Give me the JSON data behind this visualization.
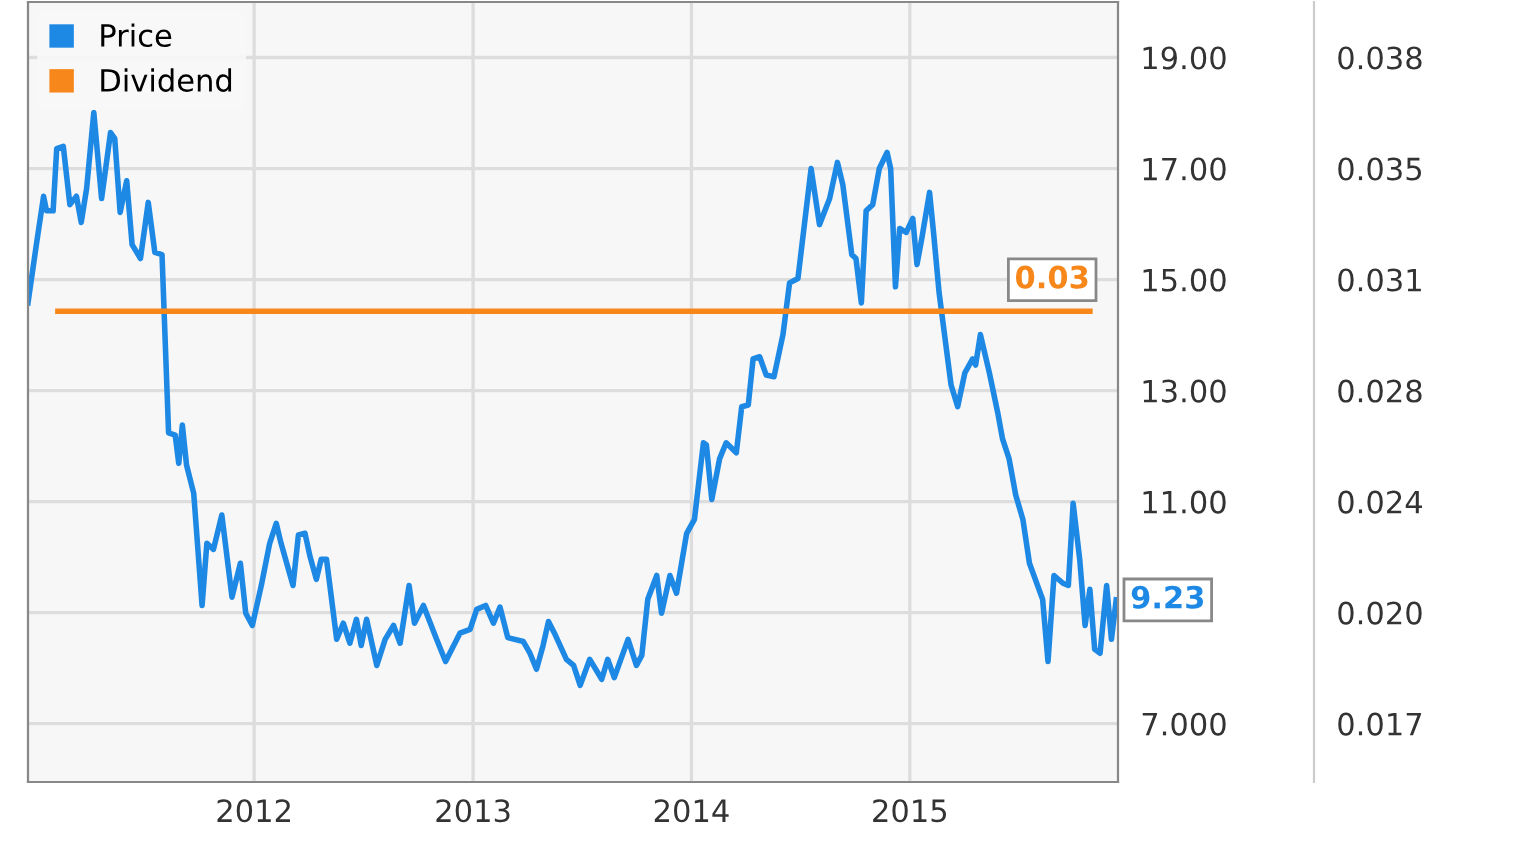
{
  "chart_data": {
    "type": "line",
    "x": [
      "2010-12-19",
      "2011-01-02",
      "2011-01-14",
      "2011-01-19",
      "2011-01-30",
      "2011-02-05",
      "2011-02-16",
      "2011-02-27",
      "2011-03-10",
      "2011-03-18",
      "2011-03-27",
      "2011-04-08",
      "2011-04-21",
      "2011-05-06",
      "2011-05-13",
      "2011-05-22",
      "2011-06-02",
      "2011-06-11",
      "2011-06-25",
      "2011-07-08",
      "2011-07-19",
      "2011-07-31",
      "2011-08-11",
      "2011-08-22",
      "2011-08-28",
      "2011-09-03",
      "2011-09-10",
      "2011-09-22",
      "2011-10-06",
      "2011-10-14",
      "2011-10-25",
      "2011-11-08",
      "2011-11-25",
      "2011-12-09",
      "2011-12-18",
      "2011-12-29",
      "2012-01-13",
      "2012-01-27",
      "2012-02-07",
      "2012-02-15",
      "2012-03-06",
      "2012-03-15",
      "2012-03-26",
      "2012-04-03",
      "2012-04-14",
      "2012-04-22",
      "2012-05-01",
      "2012-05-18",
      "2012-05-29",
      "2012-06-09",
      "2012-06-20",
      "2012-06-28",
      "2012-07-07",
      "2012-07-24",
      "2012-08-07",
      "2012-08-21",
      "2012-09-01",
      "2012-09-16",
      "2012-09-25",
      "2012-10-10",
      "2012-11-01",
      "2012-11-16",
      "2012-12-10",
      "2012-12-27",
      "2013-01-07",
      "2013-01-22",
      "2013-02-04",
      "2013-02-15",
      "2013-02-28",
      "2013-03-26",
      "2013-04-06",
      "2013-04-17",
      "2013-04-28",
      "2013-05-07",
      "2013-05-17",
      "2013-06-06",
      "2013-06-18",
      "2013-06-29",
      "2013-07-15",
      "2013-08-04",
      "2013-08-14",
      "2013-08-25",
      "2013-09-17",
      "2013-10-01",
      "2013-10-10",
      "2013-10-20",
      "2013-11-04",
      "2013-11-12",
      "2013-11-26",
      "2013-12-07",
      "2013-12-24",
      "2014-01-06",
      "2014-01-21",
      "2014-01-26",
      "2014-02-04",
      "2014-02-17",
      "2014-02-28",
      "2014-03-17",
      "2014-03-26",
      "2014-04-06",
      "2014-04-14",
      "2014-04-25",
      "2014-05-06",
      "2014-05-19",
      "2014-06-03",
      "2014-06-14",
      "2014-06-28",
      "2014-07-20",
      "2014-08-03",
      "2014-08-20",
      "2014-09-02",
      "2014-09-11",
      "2014-09-26",
      "2014-10-03",
      "2014-10-12",
      "2014-10-20",
      "2014-10-31",
      "2014-11-11",
      "2014-11-24",
      "2014-11-30",
      "2014-12-08",
      "2014-12-15",
      "2014-12-26",
      "2015-01-06",
      "2015-01-13",
      "2015-01-21",
      "2015-02-03",
      "2015-02-10",
      "2015-02-19",
      "2015-03-11",
      "2015-03-22",
      "2015-04-03",
      "2015-04-16",
      "2015-04-21",
      "2015-04-29",
      "2015-05-14",
      "2015-05-28",
      "2015-06-05",
      "2015-06-16",
      "2015-06-27",
      "2015-07-09",
      "2015-07-20",
      "2015-08-11",
      "2015-08-20",
      "2015-08-30",
      "2015-09-14",
      "2015-09-23",
      "2015-10-01",
      "2015-10-12",
      "2015-10-21",
      "2015-10-29",
      "2015-11-06",
      "2015-11-15",
      "2015-11-26",
      "2015-12-04",
      "2015-12-12"
    ],
    "series": [
      {
        "name": "Price",
        "color": "#1e88e5",
        "values": [
          14.58,
          15.63,
          16.5,
          16.24,
          16.24,
          17.36,
          17.4,
          16.35,
          16.5,
          16.03,
          16.64,
          18.01,
          16.46,
          17.65,
          17.54,
          16.21,
          16.78,
          15.63,
          15.38,
          16.39,
          15.49,
          15.45,
          12.24,
          12.2,
          11.69,
          12.38,
          11.66,
          11.15,
          9.13,
          10.25,
          10.14,
          10.76,
          9.28,
          9.89,
          8.99,
          8.77,
          9.49,
          10.25,
          10.61,
          10.25,
          9.49,
          10.4,
          10.43,
          10.03,
          9.6,
          9.96,
          9.96,
          8.52,
          8.81,
          8.45,
          8.88,
          8.41,
          8.88,
          8.05,
          8.52,
          8.77,
          8.45,
          9.49,
          8.81,
          9.13,
          8.52,
          8.12,
          8.63,
          8.7,
          9.06,
          9.13,
          8.81,
          9.1,
          8.55,
          8.48,
          8.27,
          7.98,
          8.41,
          8.84,
          8.63,
          8.16,
          8.05,
          7.69,
          8.16,
          7.8,
          8.16,
          7.83,
          8.52,
          8.05,
          8.23,
          9.24,
          9.67,
          8.99,
          9.67,
          9.35,
          10.43,
          10.68,
          12.06,
          12.02,
          11.04,
          11.77,
          12.06,
          11.88,
          12.71,
          12.74,
          13.57,
          13.61,
          13.28,
          13.25,
          14.01,
          14.94,
          15.02,
          17.0,
          15.99,
          16.46,
          17.11,
          16.71,
          15.45,
          15.38,
          14.58,
          16.24,
          16.35,
          17.0,
          17.29,
          17.0,
          14.87,
          15.92,
          15.85,
          16.1,
          15.27,
          15.74,
          16.57,
          15.81,
          14.76,
          13.1,
          12.71,
          13.32,
          13.57,
          13.46,
          14.01,
          13.32,
          12.6,
          12.13,
          11.77,
          11.12,
          10.68,
          9.89,
          9.24,
          8.12,
          9.67,
          9.53,
          9.49,
          10.97,
          9.96,
          8.77,
          9.42,
          8.34,
          8.27,
          9.49,
          8.52,
          9.23
        ],
        "value_labels": [
          null,
          null,
          null,
          null,
          null,
          null,
          null,
          null,
          null,
          null,
          null,
          null,
          null,
          null,
          null,
          null,
          null,
          null,
          null,
          null,
          null,
          null,
          null,
          null,
          null,
          null,
          null,
          null,
          null,
          null,
          null,
          null,
          null,
          null,
          null,
          null,
          null,
          null,
          null,
          null,
          null,
          null,
          null,
          null,
          null,
          null,
          null,
          null,
          null,
          null,
          null,
          null,
          null,
          null,
          null,
          null,
          null,
          null,
          null,
          null,
          null,
          null,
          null,
          null,
          null,
          null,
          null,
          null,
          null,
          null,
          null,
          null,
          null,
          null,
          null,
          null,
          null,
          null,
          null,
          null,
          null,
          null,
          null,
          null,
          null,
          null,
          null,
          null,
          null,
          null,
          null,
          null,
          null,
          null,
          null,
          null,
          null,
          null,
          null,
          null,
          null,
          null,
          null,
          null,
          null,
          null,
          null,
          null,
          null,
          null,
          null,
          null,
          null,
          null,
          null,
          null,
          null,
          null,
          null,
          null,
          null,
          null,
          null,
          null,
          null,
          null,
          null,
          null,
          null,
          null,
          null,
          null,
          null,
          null,
          null,
          null,
          null,
          null,
          null,
          null,
          null,
          null,
          null,
          null,
          null,
          null,
          null,
          null,
          null,
          null,
          null,
          null,
          null,
          null,
          null,
          "9.23"
        ]
      },
      {
        "name": "Dividend",
        "color": "#f7861b",
        "axis": "y2",
        "x": [
          "2011-02-07",
          "2015-10-29"
        ],
        "values": [
          0.03,
          0.03
        ],
        "value_labels": [
          null,
          "0.03"
        ]
      }
    ],
    "xlim": [
      "2010-12-19",
      "2015-12-15"
    ],
    "xticks": [
      {
        "value": "2012",
        "label": "2012"
      },
      {
        "value": "2013",
        "label": "2013"
      },
      {
        "value": "2014",
        "label": "2014"
      },
      {
        "value": "2015",
        "label": "2015"
      }
    ],
    "ylim": [
      5.95,
      20.0
    ],
    "yticks": [
      {
        "value": 7,
        "label": "7.000"
      },
      {
        "value": 9,
        "label": null
      },
      {
        "value": 11,
        "label": "11.00"
      },
      {
        "value": 13,
        "label": "13.00"
      },
      {
        "value": 15,
        "label": "15.00"
      },
      {
        "value": 17,
        "label": "17.00"
      },
      {
        "value": 19,
        "label": "19.00"
      }
    ],
    "y2lim": [
      0.01516,
      0.03975
    ],
    "y2ticks": [
      {
        "value": 0.017,
        "label": "0.017"
      },
      {
        "value": 0.0205,
        "label": "0.020"
      },
      {
        "value": 0.024,
        "label": "0.024"
      },
      {
        "value": 0.0275,
        "label": "0.028"
      },
      {
        "value": 0.031,
        "label": "0.031"
      },
      {
        "value": 0.0345,
        "label": "0.035"
      },
      {
        "value": 0.038,
        "label": "0.038"
      }
    ],
    "grid": true,
    "legend": "top left",
    "marker": "none",
    "line_style": "solid"
  }
}
